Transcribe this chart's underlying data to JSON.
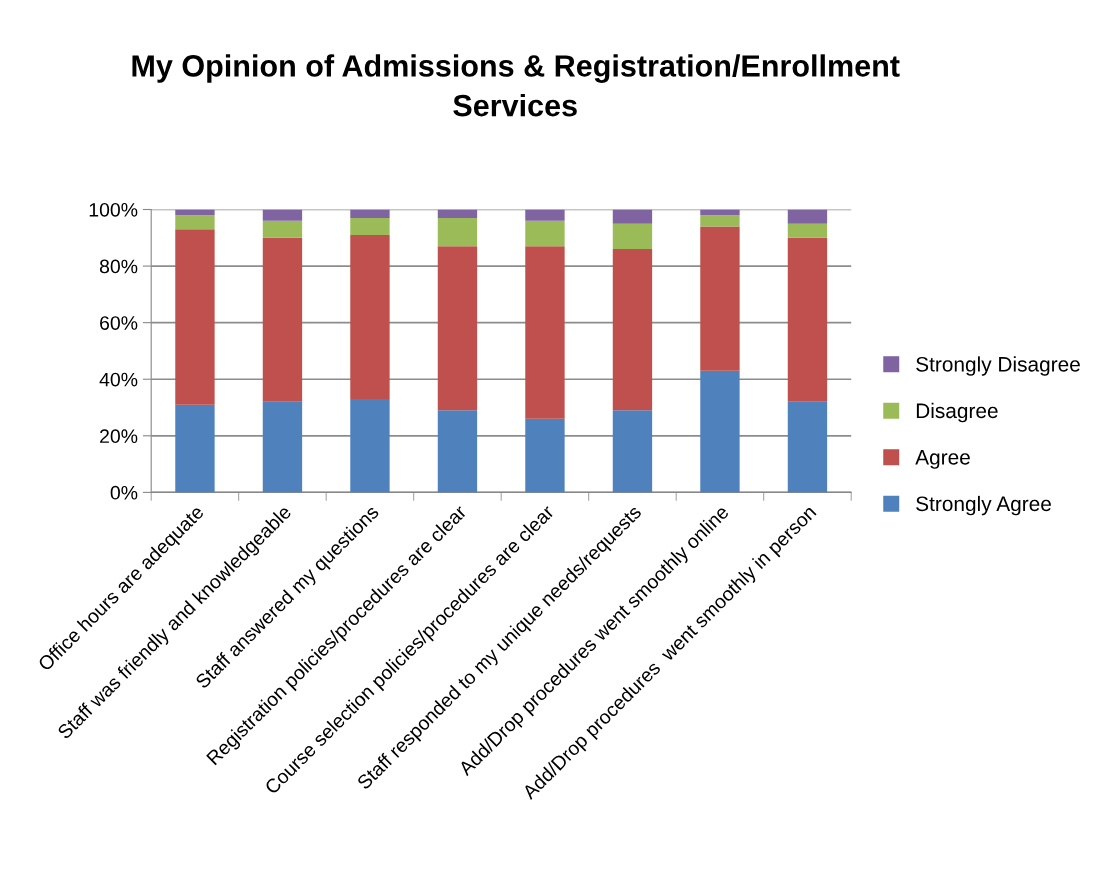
{
  "chart_data": {
    "type": "bar",
    "title": "My Opinion of Admissions & Registration/Enrollment\nServices",
    "categories": [
      "Office hours are adequate",
      "Staff was friendly and knowledgeable",
      "Staff answered my questions",
      "Registration policies/procedures are clear",
      "Course selection policies/procedures are clear",
      "Staff responded to my unique needs/requests",
      "Add/Drop procedures went smoothly online",
      "Add/Drop procedures  went smoothly in person"
    ],
    "series": [
      {
        "name": "Strongly Agree",
        "color": "#4f81bd",
        "values": [
          31,
          32,
          33,
          29,
          26,
          29,
          43,
          32
        ]
      },
      {
        "name": "Agree",
        "color": "#c0504d",
        "values": [
          62,
          58,
          58,
          58,
          61,
          57,
          51,
          58
        ]
      },
      {
        "name": "Disagree",
        "color": "#9bbb59",
        "values": [
          5,
          6,
          6,
          10,
          9,
          9,
          4,
          5
        ]
      },
      {
        "name": "Strongly Disagree",
        "color": "#8064a2",
        "values": [
          2,
          4,
          3,
          3,
          4,
          5,
          2,
          5
        ]
      }
    ],
    "stacked": true,
    "ylim": [
      0,
      100
    ],
    "yticks": [
      {
        "value": 0,
        "label": "0%"
      },
      {
        "value": 20,
        "label": "20%"
      },
      {
        "value": 40,
        "label": "40%"
      },
      {
        "value": 60,
        "label": "60%"
      },
      {
        "value": 80,
        "label": "80%"
      },
      {
        "value": 100,
        "label": "100%"
      }
    ],
    "grid": "y",
    "legend": "right"
  }
}
